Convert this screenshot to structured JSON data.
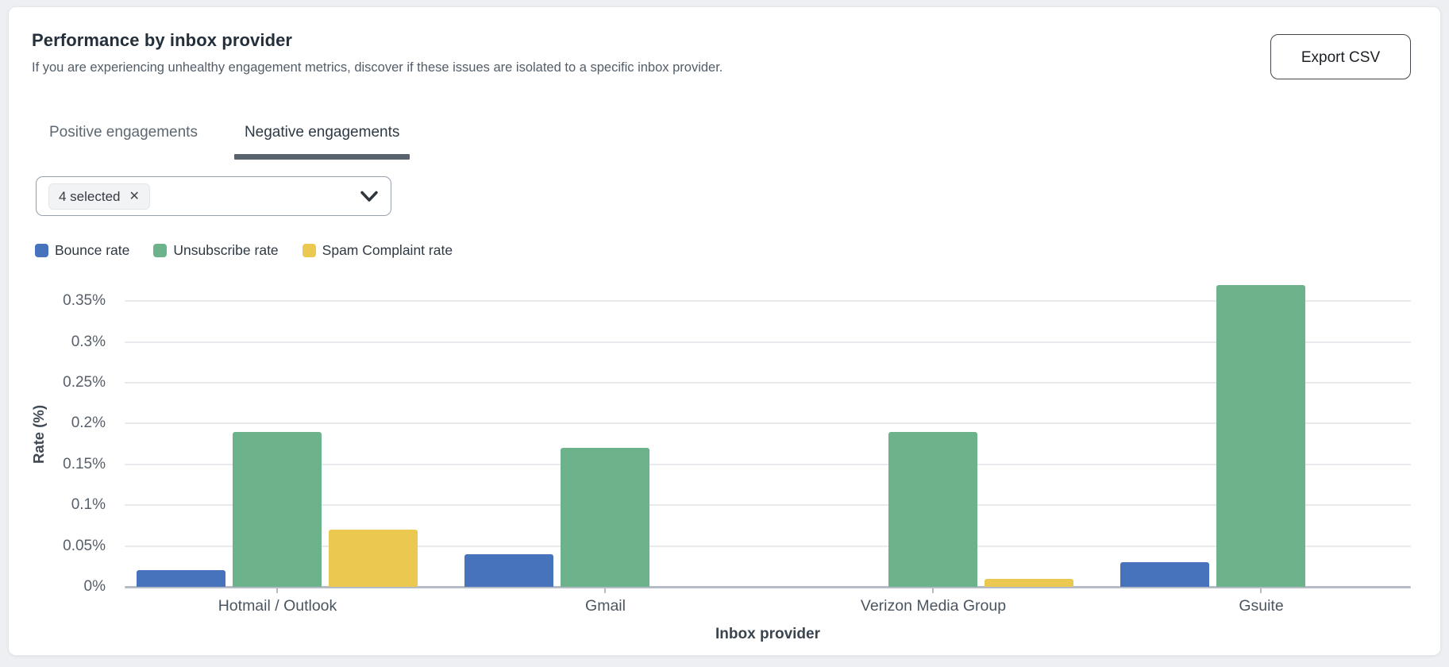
{
  "header": {
    "title": "Performance by inbox provider",
    "subtitle": "If you are experiencing unhealthy engagement metrics, discover if these issues are isolated to a specific inbox provider.",
    "export_button": "Export CSV"
  },
  "tabs": [
    {
      "label": "Positive engagements",
      "active": false
    },
    {
      "label": "Negative engagements",
      "active": true
    }
  ],
  "filter": {
    "selected_tag": "4 selected",
    "remove_icon": "✕"
  },
  "chart_data": {
    "type": "bar",
    "categories": [
      "Hotmail / Outlook",
      "Gmail",
      "Verizon Media Group",
      "Gsuite"
    ],
    "series": [
      {
        "name": "Bounce rate",
        "color": "#4673BB",
        "values": [
          0.02,
          0.04,
          0,
          0.03
        ]
      },
      {
        "name": "Unsubscribe rate",
        "color": "#6CB28B",
        "values": [
          0.19,
          0.17,
          0.19,
          0.37
        ]
      },
      {
        "name": "Spam Complaint rate",
        "color": "#EBC950",
        "values": [
          0.07,
          0,
          0.01,
          0
        ]
      }
    ],
    "xlabel": "Inbox provider",
    "ylabel": "Rate (%)",
    "yticks": {
      "values": [
        0,
        0.05,
        0.1,
        0.15,
        0.2,
        0.25,
        0.3,
        0.35
      ],
      "labels": [
        "0%",
        "0.05%",
        "0.1%",
        "0.15%",
        "0.2%",
        "0.25%",
        "0.3%",
        "0.35%"
      ]
    },
    "ylim": [
      0,
      0.385
    ],
    "grid": true,
    "legend_position": "top-left",
    "unit": "percent"
  },
  "colors": {
    "grid": "#e8eaee",
    "axis_line": "#b5bcc6",
    "tab_underline": "#59636d",
    "card_bg": "#ffffff",
    "page_bg": "#edeff2"
  }
}
